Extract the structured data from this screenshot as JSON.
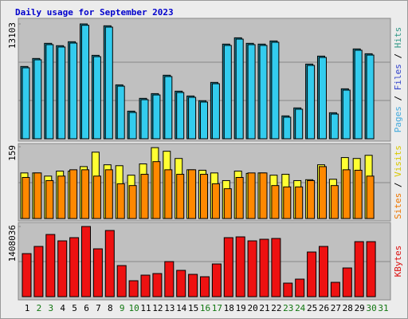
{
  "title": "Daily usage for September 2023",
  "categories": [
    "1",
    "2",
    "3",
    "4",
    "5",
    "6",
    "7",
    "8",
    "9",
    "10",
    "11",
    "12",
    "13",
    "14",
    "15",
    "16",
    "17",
    "18",
    "19",
    "20",
    "21",
    "22",
    "23",
    "24",
    "25",
    "26",
    "27",
    "28",
    "29",
    "30",
    "31"
  ],
  "category_colors": [
    "#000000",
    "#117711",
    "#117711",
    "#000000",
    "#000000",
    "#000000",
    "#000000",
    "#000000",
    "#117711",
    "#117711",
    "#000000",
    "#000000",
    "#000000",
    "#000000",
    "#000000",
    "#117711",
    "#117711",
    "#000000",
    "#000000",
    "#000000",
    "#000000",
    "#000000",
    "#117711",
    "#117711",
    "#000000",
    "#000000",
    "#000000",
    "#000000",
    "#000000",
    "#117711",
    "#117711"
  ],
  "chart_data": [
    {
      "type": "bar",
      "ylim": [
        0,
        13103
      ],
      "yticks": [
        13103
      ],
      "grid_values": [
        4368,
        8735
      ],
      "separator": " / ",
      "legend": [
        {
          "name": "Pages",
          "color": "#44aadd"
        },
        {
          "name": "Files",
          "color": "#3344cc"
        },
        {
          "name": "Hits",
          "color": "#339988"
        }
      ],
      "series": [
        {
          "name": "Hits",
          "color": "#1b8fa8",
          "values": [
            8250,
            9160,
            10890,
            10620,
            11070,
            13103,
            9520,
            12890,
            6150,
            3150,
            4610,
            5150,
            7250,
            5430,
            4880,
            4340,
            6430,
            10800,
            11520,
            10890,
            10800,
            11160,
            2610,
            3520,
            8520,
            9430,
            2970,
            5700,
            10250,
            9700,
            null
          ]
        },
        {
          "name": "Files",
          "color": "#33ccee",
          "values": [
            8100,
            9010,
            10740,
            10470,
            10920,
            12950,
            9370,
            12740,
            6000,
            3000,
            4460,
            5000,
            7100,
            5280,
            4730,
            4190,
            6280,
            10650,
            11370,
            10740,
            10650,
            11010,
            2460,
            3370,
            8370,
            9280,
            2820,
            5550,
            10100,
            9550,
            null
          ]
        }
      ]
    },
    {
      "type": "bar",
      "ylim": [
        0,
        159
      ],
      "yticks": [
        159
      ],
      "grid_values": [
        79.5
      ],
      "separator": " / ",
      "legend": [
        {
          "name": "Sites",
          "color": "#ee7700"
        },
        {
          "name": "Visits",
          "color": "#d8c800"
        }
      ],
      "series": [
        {
          "name": "Visits",
          "color": "#ffff33",
          "values": [
            101,
            101,
            94,
            105,
            105,
            115,
            147,
            119,
            117,
            96,
            121,
            157,
            149,
            133,
            108,
            107,
            101,
            84,
            105,
            100,
            101,
            96,
            98,
            84,
            86,
            119,
            87,
            135,
            133,
            140,
            null
          ]
        },
        {
          "name": "Sites",
          "color": "#ff8800",
          "values": [
            91,
            101,
            84,
            94,
            108,
            108,
            94,
            108,
            77,
            73,
            98,
            126,
            108,
            98,
            108,
            98,
            77,
            66,
            91,
            101,
            101,
            73,
            70,
            70,
            84,
            115,
            73,
            108,
            107,
            94,
            null
          ]
        }
      ]
    },
    {
      "type": "bar",
      "ylim": [
        0,
        1408036
      ],
      "yticks": [
        1408036
      ],
      "grid_values": [
        704018
      ],
      "separator": " / ",
      "legend": [
        {
          "name": "KBytes",
          "color": "#dd1111"
        }
      ],
      "series": [
        {
          "name": "KBytes",
          "color": "#ee1111",
          "values": [
            864000,
            1008000,
            1248000,
            1120000,
            1184000,
            1408036,
            960000,
            1328000,
            624000,
            320000,
            432000,
            464000,
            704000,
            528000,
            448000,
            400000,
            656000,
            1184000,
            1200000,
            1120000,
            1152000,
            1168000,
            272000,
            352000,
            896000,
            1008000,
            288000,
            576000,
            1104000,
            1104000,
            null
          ]
        }
      ]
    }
  ]
}
